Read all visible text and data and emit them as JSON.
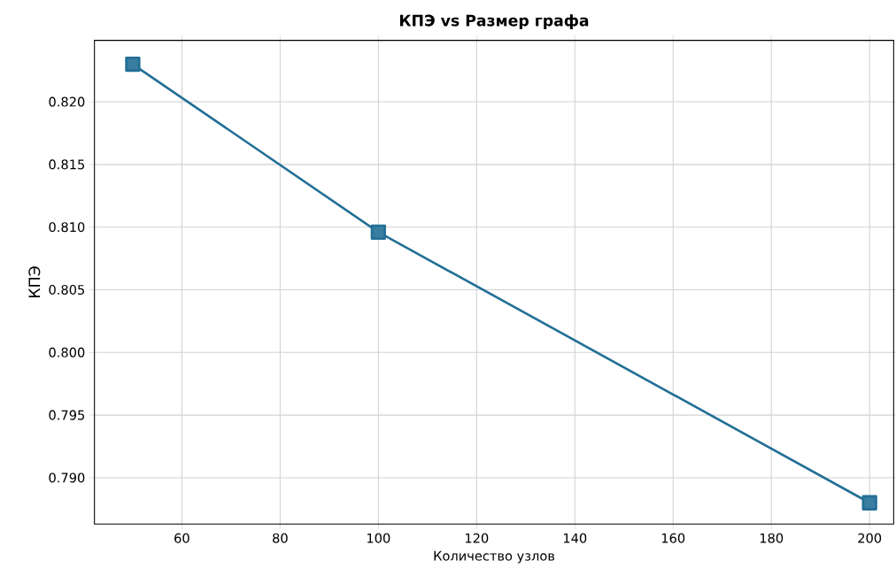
{
  "chart_data": {
    "type": "line",
    "title": "**КПЭ vs Размер графа**",
    "xlabel": "Количество узлов",
    "ylabel": "КПЭ",
    "x": [
      50,
      100,
      200
    ],
    "series": [
      {
        "color": "#236f96",
        "values": [
          0.823,
          0.8096,
          0.788
        ]
      }
    ],
    "xlim": [
      42.2,
      204.9
    ],
    "ylim": [
      0.7863,
      0.8249
    ],
    "xticks": [
      60,
      80,
      100,
      120,
      140,
      160,
      180,
      200
    ],
    "yticks": [
      {
        "value": 0.79,
        "label": "0.790"
      },
      {
        "value": 0.795,
        "label": "0.795"
      },
      {
        "value": 0.8,
        "label": "0.800"
      },
      {
        "value": 0.805,
        "label": "0.805"
      },
      {
        "value": 0.81,
        "label": "0.810"
      },
      {
        "value": 0.815,
        "label": "0.815"
      },
      {
        "value": 0.82,
        "label": "0.820"
      }
    ],
    "grid": true,
    "marker": "square",
    "line_style": "solid"
  }
}
